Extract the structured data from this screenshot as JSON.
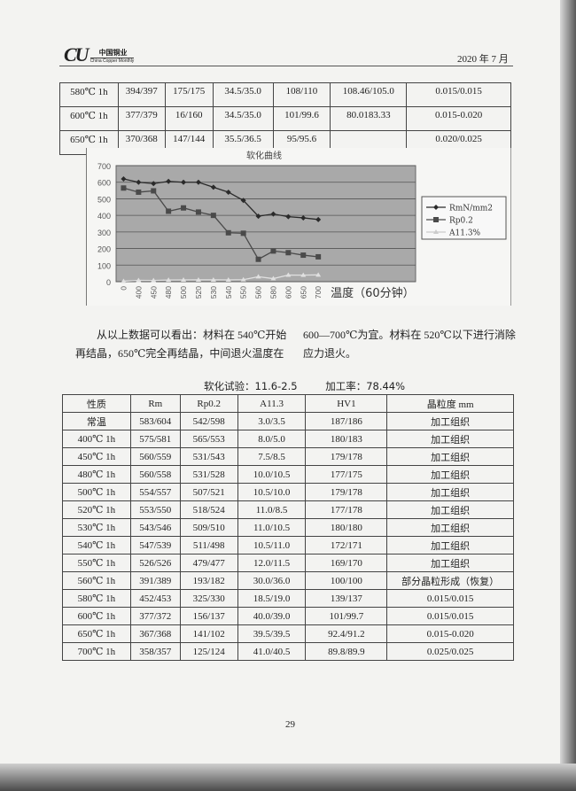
{
  "header": {
    "logo_mark": "CU",
    "logo_cn": "中国铜业",
    "logo_en": "China Copper Monthly",
    "date": "2020 年 7 月"
  },
  "top_table": {
    "rows": [
      [
        "580℃ 1h",
        "394/397",
        "175/175",
        "34.5/35.0",
        "108/110",
        "108.46/105.0",
        "0.015/0.015"
      ],
      [
        "600℃ 1h",
        "377/379",
        "16/160",
        "34.5/35.0",
        "101/99.6",
        "80.0183.33",
        "0.015-0.020"
      ],
      [
        "650℃ 1h",
        "370/368",
        "147/144",
        "35.5/36.5",
        "95/95.6",
        "",
        "0.020/0.025"
      ]
    ]
  },
  "chart_data": {
    "type": "line",
    "title": "软化曲线",
    "xlabel": "温度（60分钟）",
    "ylabel": "",
    "categories": [
      "0",
      "400",
      "450",
      "480",
      "500",
      "520",
      "530",
      "540",
      "550",
      "560",
      "580",
      "600",
      "650",
      "700"
    ],
    "ylim": [
      0,
      700
    ],
    "yticks": [
      "0",
      "100",
      "200",
      "300",
      "400",
      "500",
      "600",
      "700"
    ],
    "grid": true,
    "legend_position": "right",
    "background": "#a9a9a9",
    "series": [
      {
        "name": "RmN/mm2",
        "marker": "diamond",
        "color": "#2a2a2a",
        "values": [
          620,
          600,
          592,
          605,
          600,
          600,
          570,
          540,
          490,
          395,
          408,
          392,
          385,
          375
        ]
      },
      {
        "name": "Rp0.2",
        "marker": "square",
        "color": "#4a4a4a",
        "values": [
          565,
          540,
          548,
          425,
          445,
          420,
          400,
          295,
          292,
          135,
          185,
          175,
          160,
          150
        ]
      },
      {
        "name": "A11.3%",
        "marker": "triangle",
        "color": "#e0e0e0",
        "values": [
          3,
          8,
          7.5,
          10,
          10.5,
          11,
          11,
          10.5,
          12,
          30,
          18.5,
          40,
          39.5,
          41
        ]
      }
    ]
  },
  "paragraph": {
    "left": "从以上数据可以看出：材料在 540℃开始再结晶，650℃完全再结晶，中间退火温度在",
    "right": "600—700℃为宜。材料在 520℃以下进行消除应力退火。"
  },
  "caption": {
    "test": "软化试验：11.6-2.5",
    "rate": "加工率：78.44%"
  },
  "main_table": {
    "headers": [
      "性质",
      "Rm",
      "Rp0.2",
      "A11.3",
      "HV1",
      "晶粒度 mm"
    ],
    "rows": [
      [
        "常温",
        "583/604",
        "542/598",
        "3.0/3.5",
        "187/186",
        "加工组织"
      ],
      [
        "400℃ 1h",
        "575/581",
        "565/553",
        "8.0/5.0",
        "180/183",
        "加工组织"
      ],
      [
        "450℃ 1h",
        "560/559",
        "531/543",
        "7.5/8.5",
        "179/178",
        "加工组织"
      ],
      [
        "480℃ 1h",
        "560/558",
        "531/528",
        "10.0/10.5",
        "177/175",
        "加工组织"
      ],
      [
        "500℃ 1h",
        "554/557",
        "507/521",
        "10.5/10.0",
        "179/178",
        "加工组织"
      ],
      [
        "520℃ 1h",
        "553/550",
        "518/524",
        "11.0/8.5",
        "177/178",
        "加工组织"
      ],
      [
        "530℃ 1h",
        "543/546",
        "509/510",
        "11.0/10.5",
        "180/180",
        "加工组织"
      ],
      [
        "540℃ 1h",
        "547/539",
        "511/498",
        "10.5/11.0",
        "172/171",
        "加工组织"
      ],
      [
        "550℃ 1h",
        "526/526",
        "479/477",
        "12.0/11.5",
        "169/170",
        "加工组织"
      ],
      [
        "560℃ 1h",
        "391/389",
        "193/182",
        "30.0/36.0",
        "100/100",
        "部分晶粒形成（恢复）"
      ],
      [
        "580℃ 1h",
        "452/453",
        "325/330",
        "18.5/19.0",
        "139/137",
        "0.015/0.015"
      ],
      [
        "600℃ 1h",
        "377/372",
        "156/137",
        "40.0/39.0",
        "101/99.7",
        "0.015/0.015"
      ],
      [
        "650℃ 1h",
        "367/368",
        "141/102",
        "39.5/39.5",
        "92.4/91.2",
        "0.015-0.020"
      ],
      [
        "700℃ 1h",
        "358/357",
        "125/124",
        "41.0/40.5",
        "89.8/89.9",
        "0.025/0.025"
      ]
    ]
  },
  "page_number": "29"
}
